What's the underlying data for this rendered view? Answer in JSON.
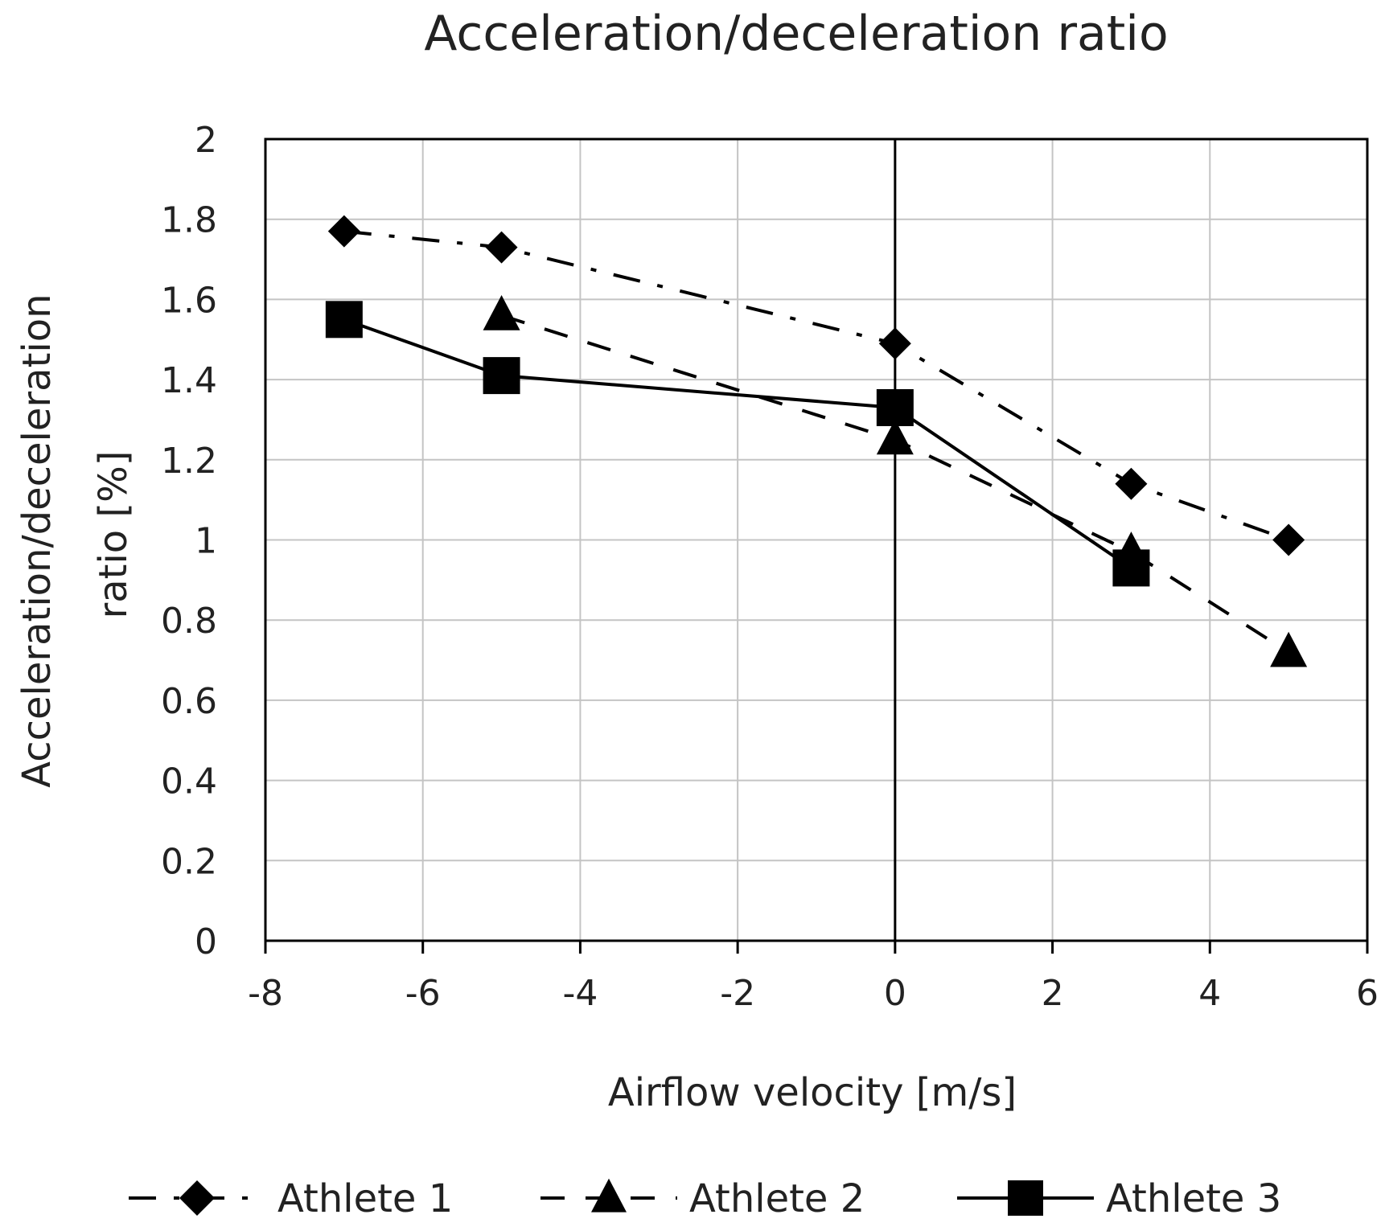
{
  "chart_data": {
    "type": "line",
    "title": "Acceleration/deceleration ratio",
    "xlabel": "Airflow velocity [m/s]",
    "ylabel_lines": [
      "Acceleration/deceleration",
      "ratio [%]"
    ],
    "xlim": [
      -8,
      6
    ],
    "ylim": [
      0,
      2
    ],
    "x_ticks": [
      -8,
      -6,
      -4,
      -2,
      0,
      2,
      4,
      6
    ],
    "y_ticks": [
      0,
      0.2,
      0.4,
      0.6,
      0.8,
      1,
      1.2,
      1.4,
      1.6,
      1.8,
      2
    ],
    "x_tick_labels": [
      "-8",
      "-6",
      "-4",
      "-2",
      "0",
      "2",
      "4",
      "6"
    ],
    "y_tick_labels": [
      "0",
      "0.2",
      "0.4",
      "0.6",
      "0.8",
      "1",
      "1.2",
      "1.4",
      "1.6",
      "1.8",
      "2"
    ],
    "grid": true,
    "legend_position": "bottom",
    "series": [
      {
        "name": "Athlete 1",
        "marker": "diamond",
        "line_style": "dash-dot",
        "x": [
          -7,
          -5,
          0,
          3,
          5
        ],
        "y": [
          1.77,
          1.73,
          1.49,
          1.14,
          1.0
        ]
      },
      {
        "name": "Athlete 2",
        "marker": "triangle",
        "line_style": "dashed",
        "x": [
          -5,
          0,
          3,
          5
        ],
        "y": [
          1.56,
          1.25,
          0.97,
          0.72
        ]
      },
      {
        "name": "Athlete 3",
        "marker": "square",
        "line_style": "solid",
        "x": [
          -7,
          -5,
          0,
          3
        ],
        "y": [
          1.55,
          1.41,
          1.33,
          0.93
        ]
      }
    ]
  }
}
